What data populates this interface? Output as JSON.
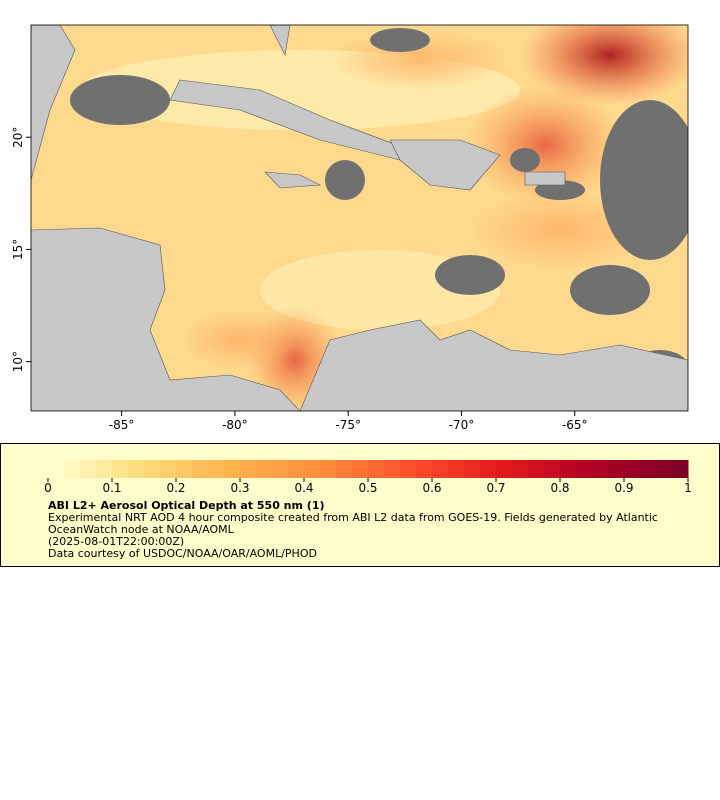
{
  "map": {
    "xlim": [
      -89,
      -60
    ],
    "ylim": [
      7.8,
      25
    ],
    "xticks": [
      {
        "value": -85,
        "label": "-85°"
      },
      {
        "value": -80,
        "label": "-80°"
      },
      {
        "value": -75,
        "label": "-75°"
      },
      {
        "value": -70,
        "label": "-70°"
      },
      {
        "value": -65,
        "label": "-65°"
      }
    ],
    "yticks": [
      {
        "value": 10,
        "label": "10°"
      },
      {
        "value": 15,
        "label": "15°"
      },
      {
        "value": 20,
        "label": "20°"
      }
    ]
  },
  "legend": {
    "colorbar": {
      "range": [
        0,
        1
      ],
      "ticks": [
        0,
        0.1,
        0.2,
        0.3,
        0.4,
        0.5,
        0.6,
        0.7,
        0.8,
        0.9,
        1
      ]
    },
    "title": "ABI L2+ Aerosol Optical Depth at 550 nm (1)",
    "description": "Experimental NRT AOD 4 hour composite created from ABI L2 data from GOES-19. Fields generated by Atlantic OceanWatch node at NOAA/AOML",
    "time": "(2025-08-01T22:00:00Z)",
    "credit": "Data courtesy of USDOC/NOAA/OAR/AOML/PHOD"
  }
}
